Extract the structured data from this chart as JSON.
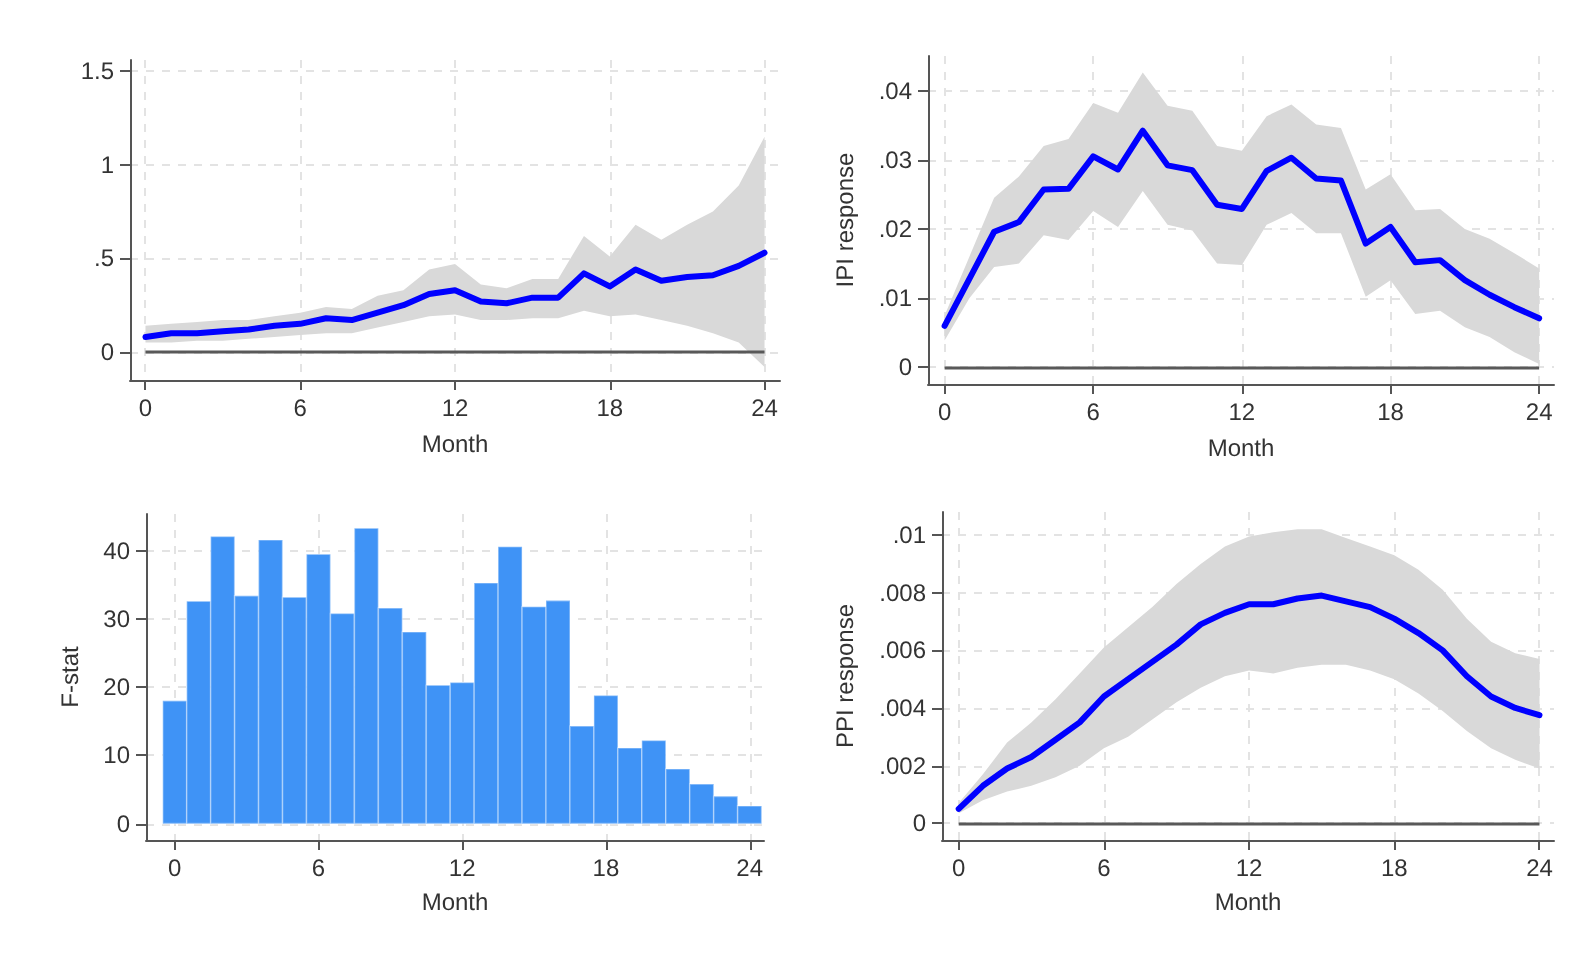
{
  "chart_data": [
    {
      "type": "line",
      "xlabel": "Month",
      "x": [
        0,
        1,
        2,
        3,
        4,
        5,
        6,
        7,
        8,
        9,
        10,
        11,
        12,
        13,
        14,
        15,
        16,
        17,
        18,
        19,
        20,
        21,
        22,
        23,
        24
      ],
      "series": [
        {
          "color": "#0000ff",
          "values": [
            0.08,
            0.1,
            0.1,
            0.11,
            0.12,
            0.14,
            0.15,
            0.18,
            0.17,
            0.21,
            0.25,
            0.31,
            0.33,
            0.27,
            0.26,
            0.29,
            0.29,
            0.42,
            0.35,
            0.44,
            0.38,
            0.4,
            0.41,
            0.46,
            0.53
          ],
          "lower": [
            0.05,
            0.05,
            0.06,
            0.06,
            0.07,
            0.08,
            0.09,
            0.1,
            0.1,
            0.13,
            0.16,
            0.19,
            0.2,
            0.17,
            0.17,
            0.18,
            0.18,
            0.22,
            0.19,
            0.2,
            0.17,
            0.14,
            0.1,
            0.05,
            -0.08
          ],
          "upper": [
            0.14,
            0.15,
            0.16,
            0.17,
            0.17,
            0.19,
            0.21,
            0.24,
            0.23,
            0.3,
            0.33,
            0.44,
            0.47,
            0.36,
            0.34,
            0.39,
            0.39,
            0.62,
            0.51,
            0.68,
            0.6,
            0.68,
            0.75,
            0.89,
            1.15
          ]
        }
      ],
      "xlim": [
        -0.6,
        24.6
      ],
      "xticks": [
        0,
        6,
        12,
        18,
        24
      ],
      "ylim": [
        -0.15,
        1.56
      ],
      "yticks": [
        0,
        {
          "value": 0.5,
          "label": ".5"
        },
        1,
        1.5
      ],
      "grid": true,
      "ref_lines": [
        {
          "axis": "y",
          "value": 0,
          "color": "#595959"
        }
      ]
    },
    {
      "type": "line",
      "xlabel": "Month",
      "ylabel": "IPI response",
      "x": [
        0,
        1,
        2,
        3,
        4,
        5,
        6,
        7,
        8,
        9,
        10,
        11,
        12,
        13,
        14,
        15,
        16,
        17,
        18,
        19,
        20,
        21,
        22,
        23,
        24
      ],
      "series": [
        {
          "color": "#0000ff",
          "values": [
            0.006,
            0.0128,
            0.0196,
            0.021,
            0.0257,
            0.0258,
            0.0305,
            0.0286,
            0.0342,
            0.0292,
            0.0285,
            0.0235,
            0.0229,
            0.0284,
            0.0303,
            0.0273,
            0.027,
            0.0179,
            0.0203,
            0.0152,
            0.0155,
            0.0126,
            0.0105,
            0.0087,
            0.0071
          ],
          "lower": [
            0.0039,
            0.01,
            0.0145,
            0.015,
            0.0191,
            0.0184,
            0.0226,
            0.0203,
            0.0255,
            0.0206,
            0.0198,
            0.015,
            0.0148,
            0.0206,
            0.0223,
            0.0194,
            0.0194,
            0.0102,
            0.0126,
            0.0077,
            0.0082,
            0.0058,
            0.0044,
            0.0022,
            0.0005
          ],
          "upper": [
            0.0075,
            0.016,
            0.0245,
            0.0276,
            0.032,
            0.033,
            0.0382,
            0.0368,
            0.0426,
            0.0378,
            0.0371,
            0.032,
            0.0313,
            0.0363,
            0.038,
            0.0351,
            0.0346,
            0.0257,
            0.0279,
            0.0227,
            0.0229,
            0.02,
            0.0186,
            0.0165,
            0.0143
          ]
        }
      ],
      "xlim": [
        -0.67,
        24.6
      ],
      "xticks": [
        0,
        6,
        12,
        18,
        24
      ],
      "ylim": [
        -0.0024,
        0.045
      ],
      "yticks": [
        0,
        {
          "value": 0.01,
          "label": ".01"
        },
        {
          "value": 0.02,
          "label": ".02"
        },
        {
          "value": 0.03,
          "label": ".03"
        },
        {
          "value": 0.04,
          "label": ".04"
        }
      ],
      "grid": true,
      "ref_lines": [
        {
          "axis": "y",
          "value": 0,
          "color": "#595959"
        }
      ]
    },
    {
      "type": "histogram",
      "xlabel": "Month",
      "ylabel": "F-stat",
      "color": "#3f93f6",
      "bins": [
        -0.5,
        0.5,
        1.5,
        2.5,
        3.5,
        4.5,
        5.5,
        6.5,
        7.5,
        8.5,
        9.5,
        10.5,
        11.5,
        12.5,
        13.5,
        14.5,
        15.5,
        16.5,
        17.5,
        18.5,
        19.5,
        20.5,
        21.5,
        22.5,
        23.5,
        24.5
      ],
      "values": [
        18,
        32.6,
        42.1,
        33.4,
        41.6,
        33.2,
        39.5,
        30.8,
        43.3,
        31.6,
        28.1,
        20.3,
        20.7,
        35.3,
        40.6,
        31.8,
        32.7,
        14.3,
        18.8,
        11.1,
        12.2,
        8,
        5.8,
        4,
        2.6
      ],
      "xlim": [
        -1.2,
        24.6
      ],
      "xticks": [
        0,
        6,
        12,
        18,
        24
      ],
      "ylim": [
        -2.4,
        45.4
      ],
      "yticks": [
        0,
        10,
        20,
        30,
        40
      ],
      "grid": true
    },
    {
      "type": "line",
      "xlabel": "Month",
      "ylabel": "PPI response",
      "x": [
        0,
        1,
        2,
        3,
        4,
        5,
        6,
        7,
        8,
        9,
        10,
        11,
        12,
        13,
        14,
        15,
        16,
        17,
        18,
        19,
        20,
        21,
        22,
        23,
        24
      ],
      "series": [
        {
          "color": "#0000ff",
          "values": [
            0.0005,
            0.0013,
            0.0019,
            0.0023,
            0.0029,
            0.0035,
            0.0044,
            0.005,
            0.0056,
            0.0062,
            0.0069,
            0.0073,
            0.0076,
            0.0076,
            0.0078,
            0.0079,
            0.0077,
            0.0075,
            0.0071,
            0.0066,
            0.006,
            0.0051,
            0.0044,
            0.004,
            0.00375
          ],
          "lower": [
            0.00035,
            0.0008,
            0.0011,
            0.0013,
            0.0016,
            0.002,
            0.0026,
            0.003,
            0.0036,
            0.0042,
            0.0047,
            0.0051,
            0.0053,
            0.0052,
            0.0054,
            0.0055,
            0.0055,
            0.0053,
            0.005,
            0.0045,
            0.0039,
            0.0032,
            0.0026,
            0.0022,
            0.0019
          ],
          "upper": [
            0.0007,
            0.0017,
            0.0028,
            0.0035,
            0.0043,
            0.0052,
            0.0061,
            0.0068,
            0.0075,
            0.0083,
            0.009,
            0.0096,
            0.00995,
            0.0101,
            0.0102,
            0.0102,
            0.0099,
            0.0096,
            0.0093,
            0.0088,
            0.0081,
            0.0071,
            0.0063,
            0.0059,
            0.0057
          ]
        }
      ],
      "xlim": [
        -0.69,
        24.6
      ],
      "xticks": [
        0,
        6,
        12,
        18,
        24
      ],
      "ylim": [
        -0.00058,
        0.0108
      ],
      "yticks": [
        0,
        {
          "value": 0.002,
          "label": ".002"
        },
        {
          "value": 0.004,
          "label": ".004"
        },
        {
          "value": 0.006,
          "label": ".006"
        },
        {
          "value": 0.008,
          "label": ".008"
        },
        {
          "value": 0.01,
          "label": ".01"
        }
      ],
      "grid": true,
      "ref_lines": [
        {
          "axis": "y",
          "value": 0,
          "color": "#595959"
        }
      ]
    }
  ]
}
